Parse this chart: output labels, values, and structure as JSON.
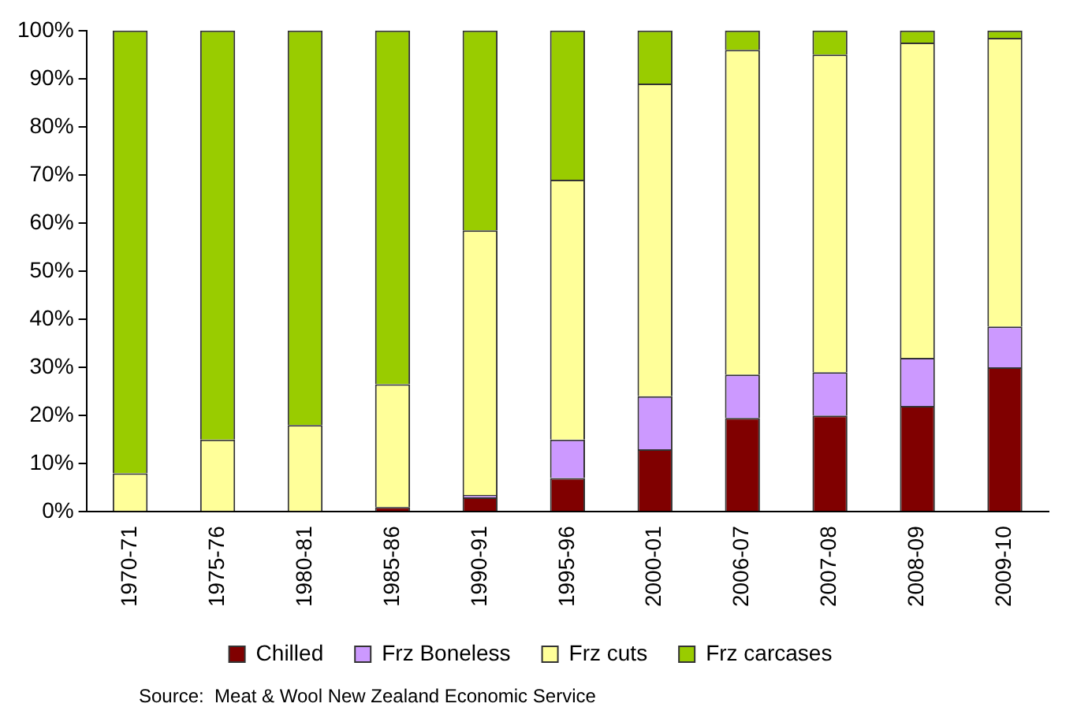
{
  "chart_data": {
    "type": "bar",
    "stacked": true,
    "categories": [
      "1970-71",
      "1975-76",
      "1980-81",
      "1985-86",
      "1990-91",
      "1995-96",
      "2000-01",
      "2006-07",
      "2007-08",
      "2008-09",
      "2009-10"
    ],
    "series": [
      {
        "name": "Chilled",
        "color": "#800000",
        "values": [
          0,
          0,
          0,
          1,
          3,
          7,
          13,
          19.5,
          20,
          22,
          30
        ]
      },
      {
        "name": "Frz Boneless",
        "color": "#cc99ff",
        "values": [
          0,
          0,
          0,
          0,
          0.5,
          8,
          11,
          9,
          9,
          10,
          8.5
        ]
      },
      {
        "name": "Frz cuts",
        "color": "#ffff99",
        "values": [
          8,
          15,
          18,
          25.5,
          55,
          54,
          65,
          67.5,
          66,
          65.5,
          60
        ]
      },
      {
        "name": "Frz carcases",
        "color": "#99cc00",
        "values": [
          92,
          85,
          82,
          73.5,
          41.5,
          31,
          11,
          4,
          5,
          2.5,
          1.5
        ]
      }
    ],
    "ylim": [
      0,
      100
    ],
    "yticks": [
      {
        "value": 0,
        "label": "0%"
      },
      {
        "value": 10,
        "label": "10%"
      },
      {
        "value": 20,
        "label": "20%"
      },
      {
        "value": 30,
        "label": "30%"
      },
      {
        "value": 40,
        "label": "40%"
      },
      {
        "value": 50,
        "label": "50%"
      },
      {
        "value": 60,
        "label": "60%"
      },
      {
        "value": 70,
        "label": "70%"
      },
      {
        "value": 80,
        "label": "80%"
      },
      {
        "value": 90,
        "label": "90%"
      },
      {
        "value": 100,
        "label": "100%"
      }
    ],
    "grid": false,
    "legend": "bottom",
    "annotations": [
      "Source:  Meat & Wool New Zealand Economic Service"
    ]
  }
}
